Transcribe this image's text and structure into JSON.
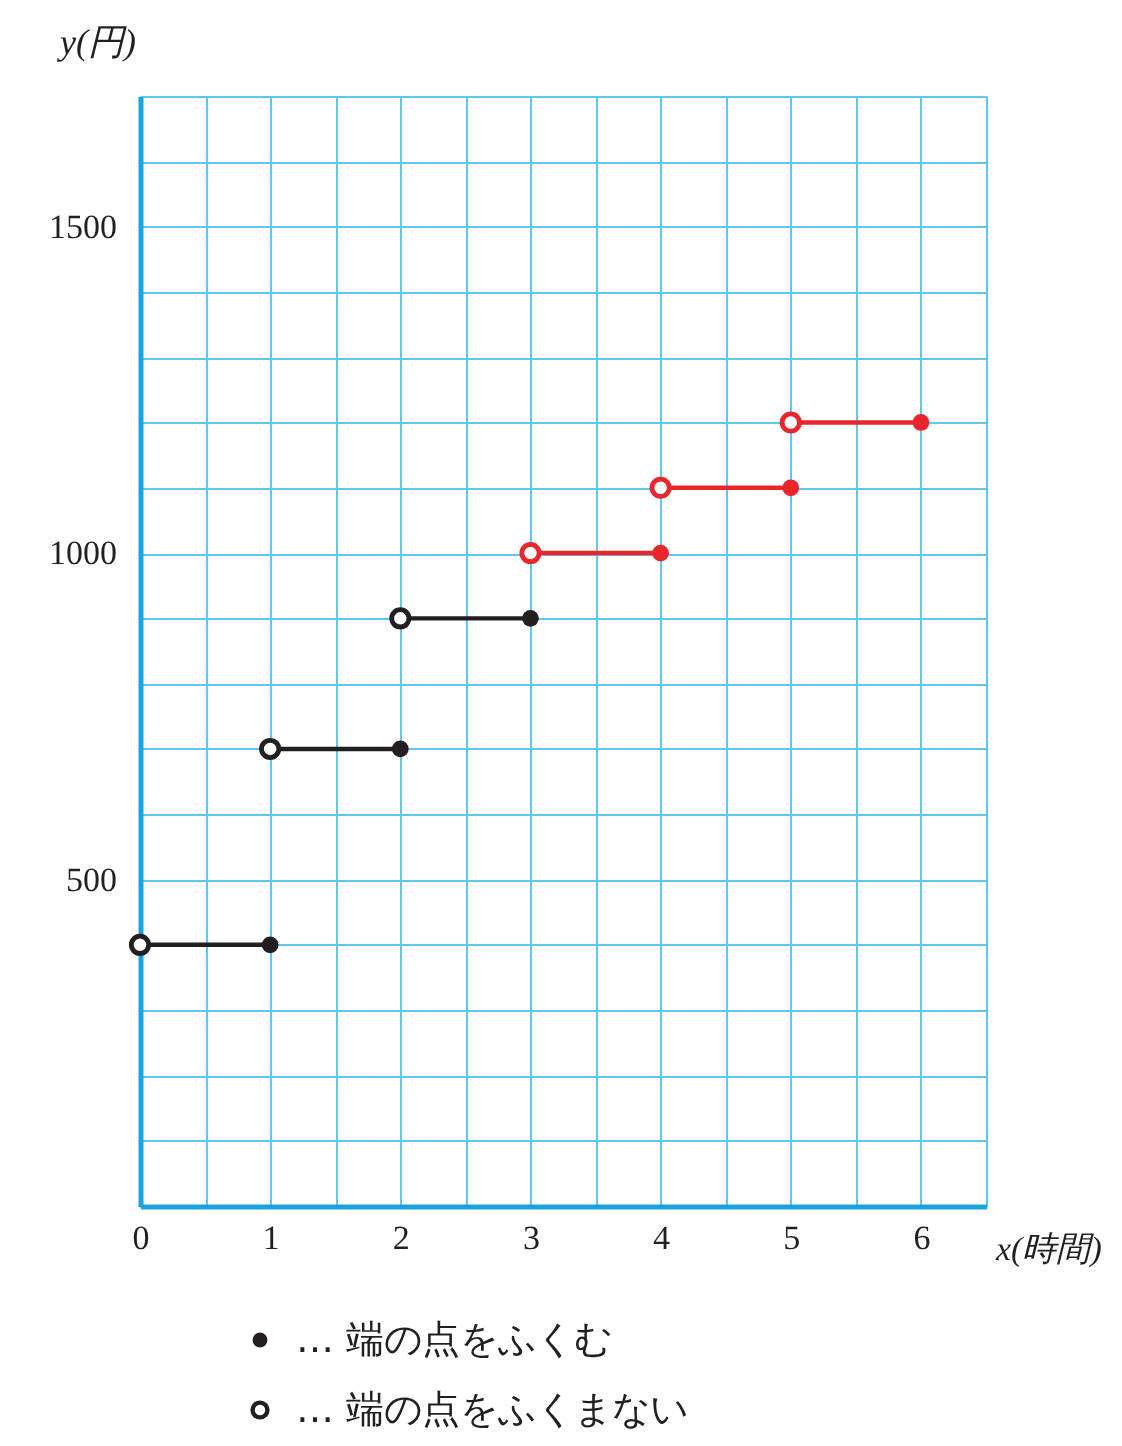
{
  "chart_data": {
    "type": "line",
    "xlabel": "x(時間)",
    "ylabel": "y(円)",
    "xlim": [
      0,
      6.5
    ],
    "ylim": [
      0,
      1700
    ],
    "xticks": [
      0,
      {
        "value": 0.5,
        "label": null
      },
      1,
      {
        "value": 1.5,
        "label": null
      },
      2,
      {
        "value": 2.5,
        "label": null
      },
      3,
      {
        "value": 3.5,
        "label": null
      },
      4,
      {
        "value": 4.5,
        "label": null
      },
      5,
      {
        "value": 5.5,
        "label": null
      },
      6,
      {
        "value": 6.5,
        "label": null
      }
    ],
    "yticks": [
      {
        "value": 0,
        "label": null
      },
      {
        "value": 100,
        "label": null
      },
      {
        "value": 200,
        "label": null
      },
      {
        "value": 300,
        "label": null
      },
      {
        "value": 400,
        "label": null
      },
      500,
      {
        "value": 600,
        "label": null
      },
      {
        "value": 700,
        "label": null
      },
      {
        "value": 800,
        "label": null
      },
      {
        "value": 900,
        "label": null
      },
      1000,
      {
        "value": 1100,
        "label": null
      },
      {
        "value": 1200,
        "label": null
      },
      {
        "value": 1300,
        "label": null
      },
      {
        "value": 1400,
        "label": null
      },
      1500,
      {
        "value": 1600,
        "label": null
      },
      {
        "value": 1700,
        "label": null
      }
    ],
    "grid": true,
    "legend": "bottom",
    "marker": "none",
    "line_style": "solid",
    "series": [
      {
        "color": "#231f20",
        "x": [
          0,
          1
        ],
        "values": [
          400,
          400
        ]
      },
      {
        "color": "#231f20",
        "x": [
          1,
          2
        ],
        "values": [
          700,
          700
        ]
      },
      {
        "color": "#231f20",
        "x": [
          2,
          3
        ],
        "values": [
          900,
          900
        ]
      },
      {
        "color": "#e8262b",
        "x": [
          3,
          4
        ],
        "values": [
          1000,
          1000
        ]
      },
      {
        "color": "#e8262b",
        "x": [
          4,
          5
        ],
        "values": [
          1100,
          1100
        ]
      },
      {
        "color": "#e8262b",
        "x": [
          5,
          6
        ],
        "values": [
          1200,
          1200
        ]
      },
      {
        "type": "scatter",
        "name": "… 端の点をふくむ",
        "marker": "circle",
        "color": "#231f20",
        "x": [
          1,
          2,
          3,
          4,
          5,
          6
        ],
        "values": [
          400,
          700,
          900,
          1000,
          1100,
          1200
        ],
        "colors": [
          "#231f20",
          "#231f20",
          "#231f20",
          "#e8262b",
          "#e8262b",
          "#e8262b"
        ]
      },
      {
        "type": "scatter",
        "name": "… 端の点をふくまない",
        "marker": "circle",
        "color": "#ffffff",
        "x": [
          0,
          1,
          2,
          3,
          4,
          5
        ],
        "values": [
          400,
          700,
          900,
          1000,
          1100,
          1200
        ],
        "colors": [
          "#231f20",
          "#231f20",
          "#231f20",
          "#e8262b",
          "#e8262b",
          "#e8262b"
        ]
      }
    ]
  }
}
